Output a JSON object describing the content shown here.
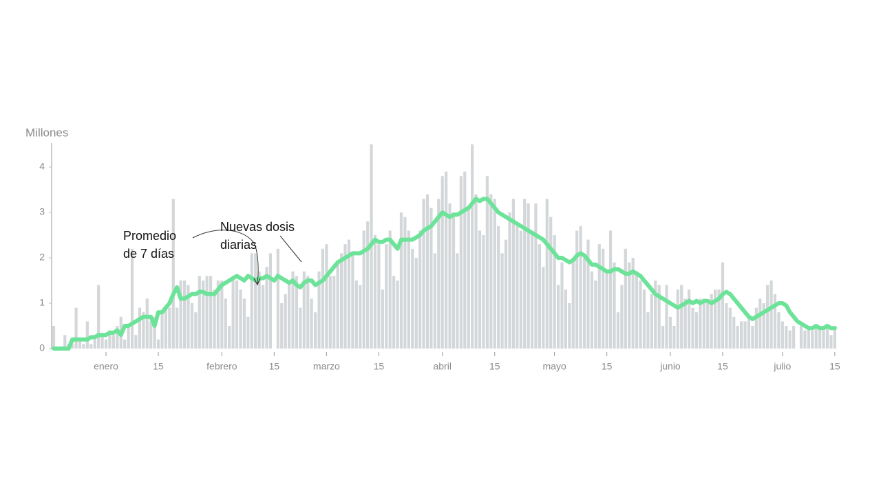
{
  "chart_data": {
    "type": "bar_line",
    "y_label": "Millones",
    "annotations": [
      {
        "lines": [
          "Promedio",
          "de 7 días"
        ]
      },
      {
        "lines": [
          "Nuevas dosis",
          "diarias"
        ]
      }
    ],
    "categories": [
      null,
      null,
      null,
      null,
      null,
      null,
      null,
      null,
      null,
      null,
      null,
      null,
      null,
      null,
      "enero",
      null,
      null,
      null,
      null,
      null,
      null,
      null,
      null,
      null,
      null,
      null,
      null,
      null,
      "15",
      null,
      null,
      null,
      null,
      null,
      null,
      null,
      null,
      null,
      null,
      null,
      null,
      null,
      null,
      null,
      null,
      "febrero",
      null,
      null,
      null,
      null,
      null,
      null,
      null,
      null,
      null,
      null,
      null,
      null,
      null,
      "15",
      null,
      null,
      null,
      null,
      null,
      null,
      null,
      null,
      null,
      null,
      null,
      null,
      null,
      "marzo",
      null,
      null,
      null,
      null,
      null,
      null,
      null,
      null,
      null,
      null,
      null,
      null,
      null,
      "15",
      null,
      null,
      null,
      null,
      null,
      null,
      null,
      null,
      null,
      null,
      null,
      null,
      null,
      null,
      null,
      null,
      "abril",
      null,
      null,
      null,
      null,
      null,
      null,
      null,
      null,
      null,
      null,
      null,
      null,
      null,
      "15",
      null,
      null,
      null,
      null,
      null,
      null,
      null,
      null,
      null,
      null,
      null,
      null,
      null,
      null,
      null,
      "mayo",
      null,
      null,
      null,
      null,
      null,
      null,
      null,
      null,
      null,
      null,
      null,
      null,
      null,
      "15",
      null,
      null,
      null,
      null,
      null,
      null,
      null,
      null,
      null,
      null,
      null,
      null,
      null,
      null,
      null,
      null,
      "junio",
      null,
      null,
      null,
      null,
      null,
      null,
      null,
      null,
      null,
      null,
      null,
      null,
      null,
      "15",
      null,
      null,
      null,
      null,
      null,
      null,
      null,
      null,
      null,
      null,
      null,
      null,
      null,
      null,
      null,
      "julio",
      null,
      null,
      null,
      null,
      null,
      null,
      null,
      null,
      null,
      null,
      null,
      null,
      null,
      "15"
    ],
    "series": [
      {
        "name": "Nuevas dosis diarias",
        "type": "bar",
        "color": "#d3d7d9",
        "values": [
          0.5,
          0,
          0,
          0.3,
          0.1,
          0.1,
          0.9,
          0.2,
          0.1,
          0.6,
          0.1,
          0.2,
          1.4,
          0.3,
          0.2,
          0.4,
          0.3,
          0.5,
          0.7,
          0.2,
          0.5,
          2.2,
          0.3,
          0.9,
          0.8,
          1.1,
          0.6,
          0.7,
          0.2,
          0.8,
          0.9,
          0.9,
          3.3,
          0.9,
          1.5,
          1.5,
          1.4,
          1.0,
          0.8,
          1.6,
          1.5,
          1.6,
          1.6,
          1.3,
          1.5,
          1.5,
          1.1,
          0.5,
          1.6,
          1.5,
          1.3,
          1.1,
          0.7,
          2.1,
          2.1,
          1.7,
          1.4,
          1.8,
          2.1,
          0,
          2.2,
          1.0,
          1.2,
          1.5,
          1.7,
          1.6,
          0.9,
          1.7,
          1.6,
          1.1,
          0.8,
          1.7,
          2.2,
          2.3,
          1.6,
          1.6,
          1.9,
          2.1,
          2.3,
          2.4,
          2.1,
          1.5,
          1.4,
          2.6,
          2.8,
          4.5,
          2.5,
          2.3,
          1.3,
          2.3,
          2.6,
          1.6,
          1.5,
          3.0,
          2.9,
          2.6,
          2.2,
          2.0,
          2.6,
          3.3,
          3.4,
          3.1,
          2.1,
          3.3,
          3.8,
          3.9,
          3.2,
          3.0,
          2.1,
          3.8,
          3.9,
          3.1,
          4.5,
          3.4,
          2.6,
          2.5,
          3.8,
          3.4,
          3.3,
          2.7,
          2.1,
          2.4,
          3.0,
          3.3,
          2.7,
          2.6,
          3.3,
          3.2,
          2.6,
          3.2,
          2.3,
          1.8,
          3.3,
          2.9,
          2.5,
          1.4,
          1.9,
          1.3,
          1.0,
          1.9,
          2.6,
          2.7,
          2.0,
          2.4,
          1.7,
          1.5,
          2.3,
          2.2,
          1.7,
          2.6,
          1.9,
          0.8,
          1.4,
          2.2,
          1.9,
          2.0,
          1.7,
          1.5,
          1.3,
          0.8,
          1.2,
          1.5,
          1.4,
          0.5,
          1.4,
          0.7,
          0.5,
          1.3,
          1.4,
          1.1,
          1.3,
          0.9,
          0.8,
          1.1,
          1.1,
          1.0,
          1.2,
          1.3,
          1.3,
          1.9,
          1.0,
          0.9,
          0.7,
          0.5,
          0.6,
          0.6,
          0.7,
          0.5,
          0.9,
          1.1,
          1.0,
          1.4,
          1.5,
          1.2,
          0.8,
          0.6,
          0.5,
          0.4,
          0.5,
          0,
          0.5,
          0.4,
          0.5,
          0.4,
          0.5,
          0.5,
          0.4,
          0.5,
          0.3,
          0.5
        ]
      },
      {
        "name": "Promedio de 7 días",
        "type": "line",
        "color": "#6de39a",
        "values": [
          0,
          0,
          0,
          0,
          0,
          0.2,
          0.2,
          0.2,
          0.2,
          0.2,
          0.25,
          0.25,
          0.3,
          0.3,
          0.3,
          0.35,
          0.35,
          0.4,
          0.3,
          0.5,
          0.5,
          0.55,
          0.6,
          0.65,
          0.7,
          0.7,
          0.7,
          0.5,
          0.8,
          0.8,
          0.9,
          1.0,
          1.2,
          1.35,
          1.1,
          1.1,
          1.15,
          1.2,
          1.2,
          1.25,
          1.25,
          1.2,
          1.2,
          1.2,
          1.3,
          1.4,
          1.45,
          1.5,
          1.55,
          1.6,
          1.55,
          1.5,
          1.6,
          1.55,
          1.5,
          1.55,
          1.55,
          1.6,
          1.55,
          1.5,
          1.6,
          1.55,
          1.5,
          1.45,
          1.5,
          1.4,
          1.35,
          1.45,
          1.5,
          1.5,
          1.4,
          1.45,
          1.5,
          1.6,
          1.7,
          1.8,
          1.9,
          1.95,
          2.0,
          2.05,
          2.1,
          2.1,
          2.1,
          2.15,
          2.2,
          2.3,
          2.4,
          2.35,
          2.35,
          2.4,
          2.4,
          2.3,
          2.2,
          2.4,
          2.4,
          2.4,
          2.4,
          2.45,
          2.5,
          2.6,
          2.65,
          2.7,
          2.8,
          2.9,
          3.0,
          2.95,
          2.9,
          2.95,
          2.95,
          3.0,
          3.05,
          3.1,
          3.2,
          3.3,
          3.25,
          3.3,
          3.3,
          3.2,
          3.1,
          3.0,
          2.95,
          2.9,
          2.85,
          2.8,
          2.75,
          2.7,
          2.65,
          2.6,
          2.55,
          2.5,
          2.45,
          2.4,
          2.3,
          2.2,
          2.1,
          2.0,
          2.0,
          1.95,
          1.9,
          1.95,
          2.05,
          2.1,
          2.05,
          1.95,
          1.85,
          1.85,
          1.8,
          1.75,
          1.7,
          1.7,
          1.75,
          1.75,
          1.7,
          1.65,
          1.65,
          1.7,
          1.65,
          1.6,
          1.5,
          1.4,
          1.3,
          1.2,
          1.15,
          1.1,
          1.05,
          1.0,
          0.95,
          0.9,
          0.95,
          1.0,
          1.05,
          1.0,
          1.05,
          1.0,
          1.05,
          1.05,
          1.0,
          1.05,
          1.1,
          1.2,
          1.25,
          1.2,
          1.1,
          1.0,
          0.9,
          0.8,
          0.7,
          0.65,
          0.7,
          0.75,
          0.8,
          0.85,
          0.9,
          0.95,
          1.0,
          1.0,
          0.95,
          0.8,
          0.7,
          0.6,
          0.55,
          0.5,
          0.45,
          0.45,
          0.5,
          0.45,
          0.45,
          0.5,
          0.45,
          0.45
        ]
      }
    ],
    "ylim": [
      0,
      4.5
    ],
    "yticks": [
      0,
      1,
      2,
      3,
      4
    ]
  }
}
